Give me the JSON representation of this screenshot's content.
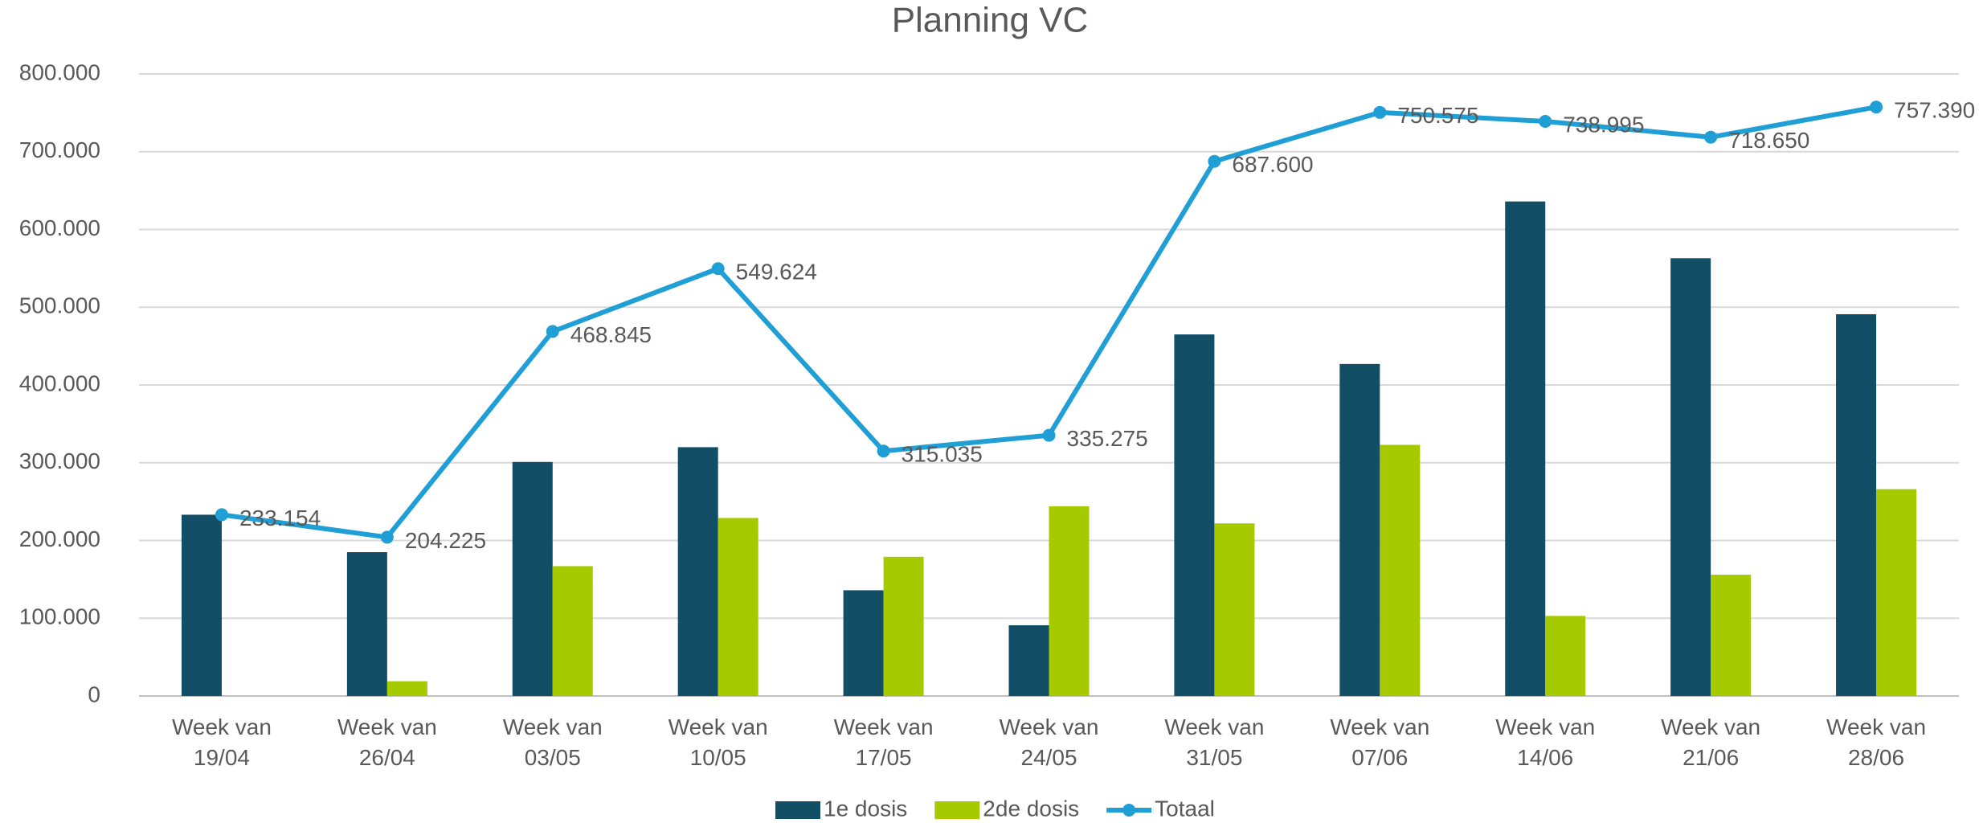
{
  "chart_data": {
    "type": "bar_line",
    "title": "Planning VC",
    "categories": [
      "Week van 19/04",
      "Week van 26/04",
      "Week van 03/05",
      "Week van 10/05",
      "Week van 17/05",
      "Week van 24/05",
      "Week van 31/05",
      "Week van 07/06",
      "Week van 14/06",
      "Week van 21/06",
      "Week van 28/06"
    ],
    "series": [
      {
        "name": "1e dosis",
        "color": "#124e66",
        "kind": "bar",
        "values": [
          233154,
          185000,
          301000,
          320000,
          136000,
          91000,
          465000,
          427000,
          636000,
          563000,
          491000
        ]
      },
      {
        "name": "2de dosis",
        "color": "#a5cb00",
        "kind": "bar",
        "values": [
          0,
          19000,
          167000,
          229000,
          179000,
          244000,
          222000,
          323000,
          103000,
          156000,
          266000
        ]
      },
      {
        "name": "Totaal",
        "color": "#1f9fd6",
        "kind": "line",
        "values": [
          233154,
          204225,
          468845,
          549624,
          315035,
          335275,
          687600,
          750575,
          738995,
          718650,
          757390
        ],
        "value_labels": [
          "233.154",
          "204.225",
          "468.845",
          "549.624",
          "315.035",
          "335.275",
          "687.600",
          "750.575",
          "738.995",
          "718.650",
          "757.390"
        ]
      }
    ],
    "ylim": [
      0,
      800000
    ],
    "yticks": [
      0,
      {
        "value": 100000,
        "label": "100.000"
      },
      {
        "value": 200000,
        "label": "200.000"
      },
      {
        "value": 300000,
        "label": "300.000"
      },
      {
        "value": 400000,
        "label": "400.000"
      },
      {
        "value": 500000,
        "label": "500.000"
      },
      {
        "value": 600000,
        "label": "600.000"
      },
      {
        "value": 700000,
        "label": "700.000"
      },
      {
        "value": 800000,
        "label": "800.000"
      }
    ],
    "grid": true,
    "legend": "bottom"
  }
}
